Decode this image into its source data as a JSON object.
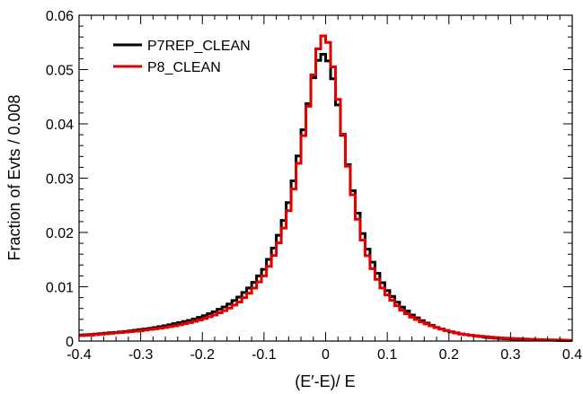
{
  "chart_data": {
    "type": "line",
    "drawstyle": "steps-mid",
    "xlabel": "(E′-E)/ E",
    "ylabel": "Fraction of Evts / 0.008",
    "xlim": [
      -0.4,
      0.4
    ],
    "ylim": [
      0,
      0.06
    ],
    "x_ticks": [
      -0.4,
      -0.3,
      -0.2,
      -0.1,
      0,
      0.1,
      0.2,
      0.3,
      0.4
    ],
    "x_tick_labels": [
      "-0.4",
      "-0.3",
      "-0.2",
      "-0.1",
      "0",
      "0.1",
      "0.2",
      "0.3",
      "0.4"
    ],
    "y_ticks": [
      0,
      0.01,
      0.02,
      0.03,
      0.04,
      0.05,
      0.06
    ],
    "y_tick_labels": [
      "0",
      "0.01",
      "0.02",
      "0.03",
      "0.04",
      "0.05",
      "0.06"
    ],
    "bin_width": 0.008,
    "legend_position": "top-left",
    "grid": false,
    "series": [
      {
        "name": "P7REP_CLEAN",
        "color": "#000000",
        "x": [
          -0.4,
          -0.38,
          -0.36,
          -0.34,
          -0.32,
          -0.3,
          -0.28,
          -0.26,
          -0.24,
          -0.22,
          -0.2,
          -0.18,
          -0.16,
          -0.14,
          -0.12,
          -0.1,
          -0.09,
          -0.08,
          -0.07,
          -0.06,
          -0.05,
          -0.04,
          -0.03,
          -0.02,
          -0.01,
          0,
          0.01,
          0.02,
          0.03,
          0.04,
          0.05,
          0.06,
          0.07,
          0.08,
          0.09,
          0.1,
          0.12,
          0.14,
          0.16,
          0.18,
          0.2,
          0.22,
          0.24,
          0.26,
          0.28,
          0.3,
          0.32,
          0.34,
          0.36,
          0.38,
          0.4
        ],
        "y": [
          0.0011,
          0.0012,
          0.0014,
          0.0016,
          0.0018,
          0.0021,
          0.0024,
          0.0028,
          0.0033,
          0.0038,
          0.0045,
          0.0054,
          0.0065,
          0.0081,
          0.0102,
          0.0132,
          0.0155,
          0.0182,
          0.0214,
          0.0255,
          0.0305,
          0.0365,
          0.0425,
          0.0485,
          0.0525,
          0.053,
          0.0495,
          0.0435,
          0.0365,
          0.0298,
          0.0245,
          0.0198,
          0.0162,
          0.0134,
          0.0111,
          0.0093,
          0.0066,
          0.0048,
          0.0035,
          0.0025,
          0.0018,
          0.0013,
          0.001,
          0.0007,
          0.0005,
          0.0004,
          0.0003,
          0.0002,
          0.0002,
          0.0001,
          0.0001
        ]
      },
      {
        "name": "P8_CLEAN",
        "color": "#e00000",
        "x": [
          -0.4,
          -0.38,
          -0.36,
          -0.34,
          -0.32,
          -0.3,
          -0.28,
          -0.26,
          -0.24,
          -0.22,
          -0.2,
          -0.18,
          -0.16,
          -0.14,
          -0.12,
          -0.1,
          -0.09,
          -0.08,
          -0.07,
          -0.06,
          -0.05,
          -0.04,
          -0.03,
          -0.02,
          -0.01,
          0,
          0.01,
          0.02,
          0.03,
          0.04,
          0.05,
          0.06,
          0.07,
          0.08,
          0.09,
          0.1,
          0.12,
          0.14,
          0.16,
          0.18,
          0.2,
          0.22,
          0.24,
          0.26,
          0.28,
          0.3,
          0.32,
          0.34,
          0.36,
          0.38,
          0.4
        ],
        "y": [
          0.001,
          0.0011,
          0.0013,
          0.0015,
          0.0017,
          0.0019,
          0.0022,
          0.0025,
          0.0029,
          0.0034,
          0.004,
          0.0048,
          0.0058,
          0.0072,
          0.0092,
          0.012,
          0.0142,
          0.0168,
          0.02,
          0.024,
          0.029,
          0.0352,
          0.0418,
          0.049,
          0.055,
          0.057,
          0.052,
          0.0445,
          0.0365,
          0.0293,
          0.0234,
          0.0186,
          0.015,
          0.0122,
          0.0101,
          0.0085,
          0.006,
          0.0044,
          0.0033,
          0.0025,
          0.0018,
          0.0013,
          0.001,
          0.0008,
          0.0006,
          0.0005,
          0.0004,
          0.0003,
          0.0002,
          0.0002,
          0.0001
        ]
      }
    ]
  }
}
